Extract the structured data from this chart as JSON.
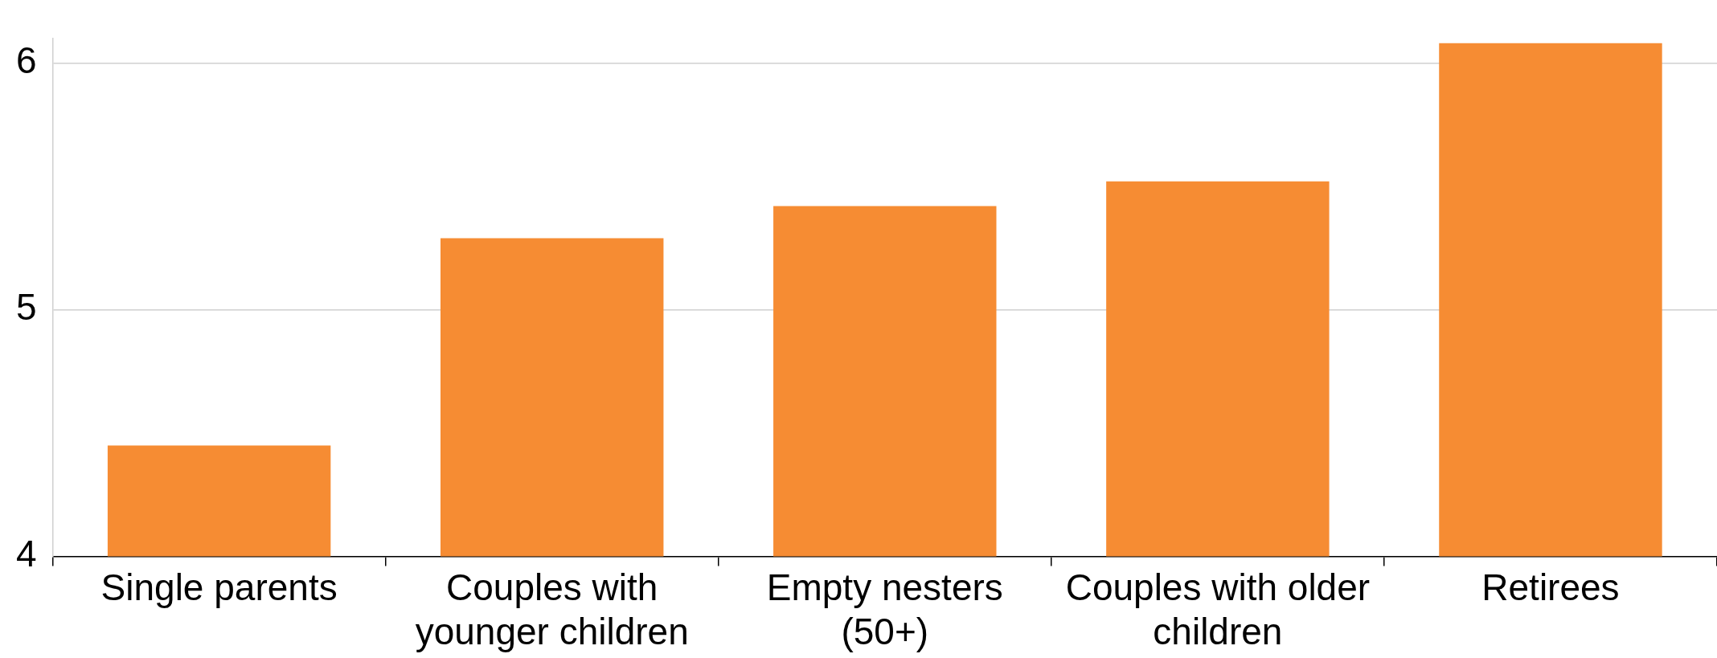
{
  "chart_data": {
    "type": "bar",
    "categories": [
      "Single parents",
      "Couples with younger children",
      "Empty nesters (50+)",
      "Couples with older children",
      "Retirees"
    ],
    "values": [
      4.45,
      5.29,
      5.42,
      5.52,
      6.08
    ],
    "color": "#f68c33",
    "ylim": [
      4,
      6.1
    ],
    "yticks": [
      4,
      5,
      6
    ],
    "grid": "y",
    "legend": false
  }
}
